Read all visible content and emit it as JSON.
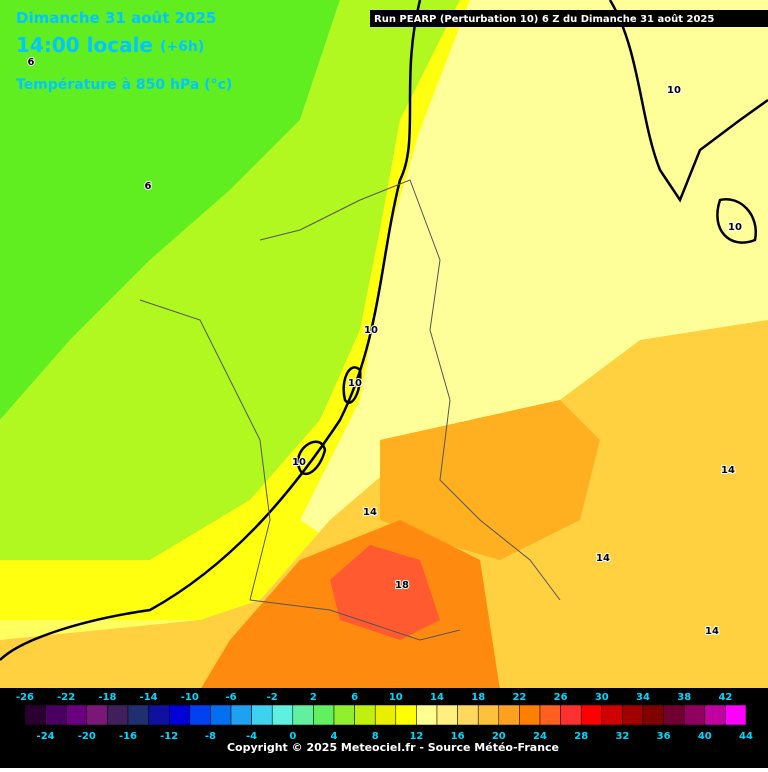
{
  "header": "Run PEARP (Perturbation 10) 6 Z du Dimanche 31 août 2025",
  "title": {
    "date": "Dimanche 31 août 2025",
    "time": "14:00 locale",
    "lead": "(+6h)",
    "field": "Température à 850 hPa (°c)"
  },
  "contour_labels": [
    "6",
    "6",
    "10",
    "10",
    "10",
    "10",
    "10",
    "14",
    "14",
    "14",
    "14",
    "18"
  ],
  "colorbar": {
    "colors": [
      "#2a0030",
      "#4a0060",
      "#6a0080",
      "#7a1878",
      "#40205a",
      "#20306e",
      "#1010a0",
      "#0000d8",
      "#0040f0",
      "#0070f0",
      "#20a0f0",
      "#40d0f0",
      "#60f0e0",
      "#60f0a0",
      "#60f060",
      "#90f030",
      "#c0f010",
      "#e8f000",
      "#ffff00",
      "#ffff90",
      "#fff080",
      "#ffd860",
      "#ffc040",
      "#ffa020",
      "#ff8000",
      "#ff6020",
      "#ff3030",
      "#ff0000",
      "#d00000",
      "#a00000",
      "#800000",
      "#700030",
      "#900060",
      "#c000a0",
      "#ff00ff"
    ],
    "top_labels": [
      -26,
      -22,
      -18,
      -14,
      -10,
      -6,
      -2,
      2,
      6,
      10,
      14,
      18,
      22,
      26,
      30,
      34,
      38,
      42
    ],
    "bottom_labels": [
      -24,
      -20,
      -16,
      -12,
      -8,
      -4,
      0,
      4,
      8,
      12,
      16,
      20,
      24,
      28,
      32,
      36,
      40,
      44
    ]
  },
  "copyright": "Copyright © 2025 Meteociel.fr - Source Météo-France"
}
